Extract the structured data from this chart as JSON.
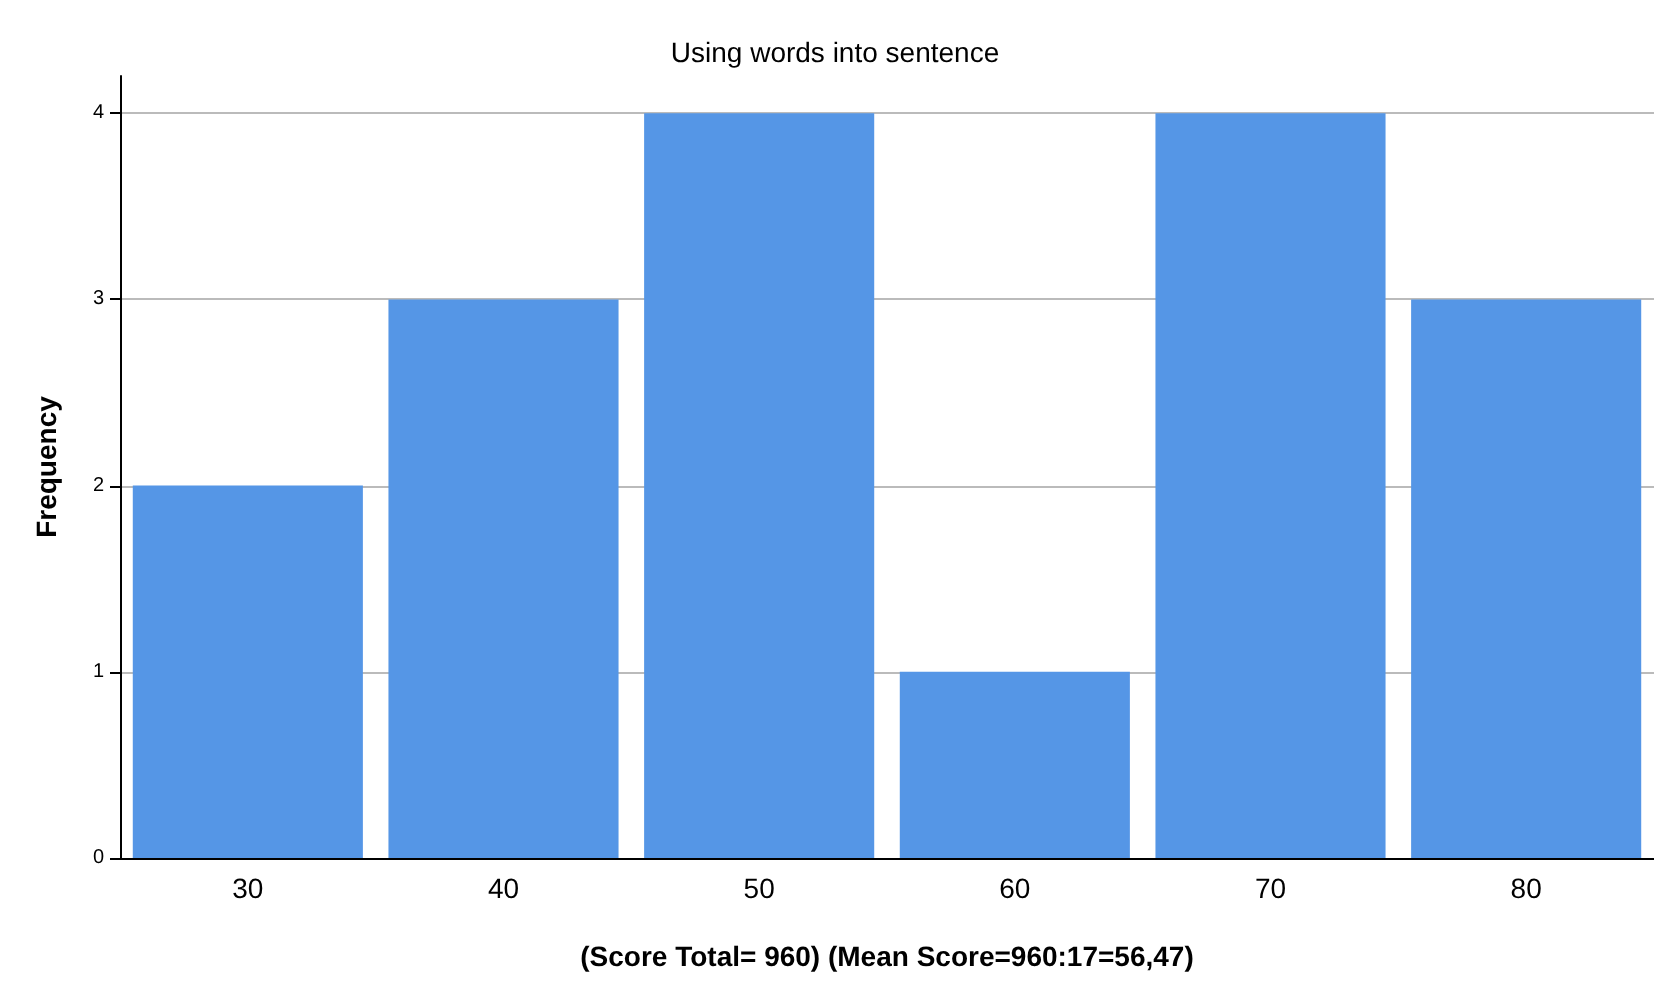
{
  "chart_data": {
    "type": "bar",
    "title": "Using words into sentence",
    "xlabel": "(Score Total= 960) (Mean Score=960:17=56,47)",
    "ylabel": "Frequency",
    "categories": [
      "30",
      "40",
      "50",
      "60",
      "70",
      "80"
    ],
    "values": [
      2,
      3,
      4,
      1,
      4,
      3
    ],
    "color": "#5596e6",
    "ylim": [
      0,
      4.2
    ],
    "yticks": [
      0,
      1,
      2,
      3,
      4
    ],
    "grid": "y"
  }
}
